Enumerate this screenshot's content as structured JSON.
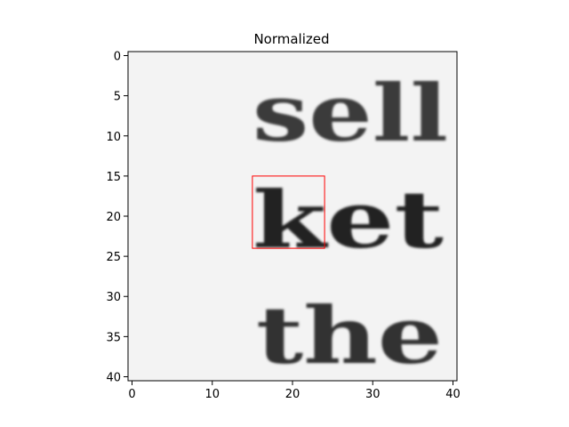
{
  "chart_data": {
    "type": "heatmap",
    "title": "Normalized",
    "xlabel": "",
    "ylabel": "",
    "x_extent": [
      -0.5,
      40.5
    ],
    "y_extent": [
      40.5,
      -0.5
    ],
    "x_ticks": [
      0,
      10,
      20,
      30,
      40
    ],
    "y_ticks": [
      0,
      5,
      10,
      15,
      20,
      25,
      30,
      35,
      40
    ],
    "colormap": "gray",
    "image_words": [
      "sell",
      "ket",
      "the"
    ],
    "highlight_box": {
      "x0": 15,
      "y0": 15,
      "x1": 24,
      "y1": 24,
      "color": "#ff0000"
    }
  }
}
